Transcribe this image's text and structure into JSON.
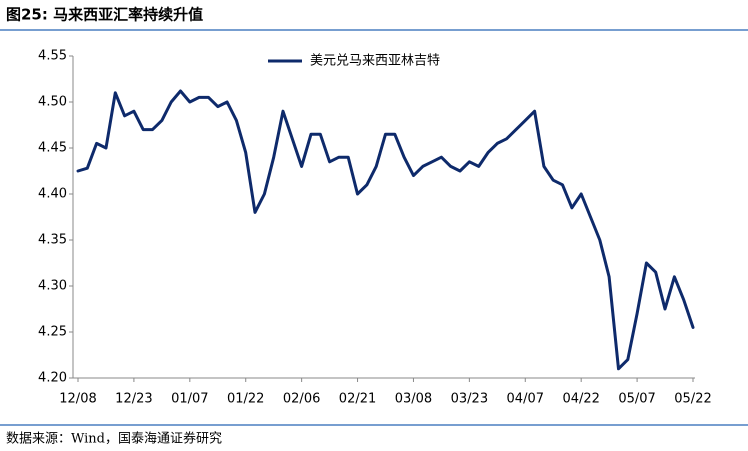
{
  "chart_data": {
    "type": "line",
    "title": "图25:  马来西亚汇率持续升值",
    "source": "数据来源：Wind，国泰海通证券研究",
    "categories": [
      "12/08",
      null,
      null,
      null,
      null,
      null,
      "12/23",
      null,
      null,
      null,
      null,
      null,
      "01/07",
      null,
      null,
      null,
      null,
      null,
      "01/22",
      null,
      null,
      null,
      null,
      null,
      "02/06",
      null,
      null,
      null,
      null,
      null,
      "02/21",
      null,
      null,
      null,
      null,
      null,
      "03/08",
      null,
      null,
      null,
      null,
      null,
      "03/23",
      null,
      null,
      null,
      null,
      null,
      "04/07",
      null,
      null,
      null,
      null,
      null,
      "04/22",
      null,
      null,
      null,
      null,
      null,
      "05/07",
      null,
      null,
      null,
      null,
      null,
      "05/22"
    ],
    "series": [
      {
        "name": "美元兑马来西亚林吉特",
        "color": "#0e2a6b",
        "values": [
          4.425,
          4.428,
          4.455,
          4.45,
          4.51,
          4.485,
          4.49,
          4.47,
          4.47,
          4.48,
          4.5,
          4.512,
          4.5,
          4.505,
          4.505,
          4.495,
          4.5,
          4.48,
          4.445,
          4.38,
          4.4,
          4.44,
          4.49,
          4.46,
          4.43,
          4.465,
          4.465,
          4.435,
          4.44,
          4.44,
          4.4,
          4.41,
          4.43,
          4.465,
          4.465,
          4.44,
          4.42,
          4.43,
          4.435,
          4.44,
          4.43,
          4.425,
          4.435,
          4.43,
          4.445,
          4.455,
          4.46,
          4.47,
          4.48,
          4.49,
          4.43,
          4.415,
          4.41,
          4.385,
          4.4,
          4.375,
          4.35,
          4.31,
          4.21,
          4.22,
          4.27,
          4.325,
          4.315,
          4.275,
          4.31,
          4.285,
          4.255
        ]
      }
    ],
    "ylim": [
      4.2,
      4.55
    ],
    "yticks": [
      {
        "value": 4.2,
        "label": "4.20"
      },
      4.25,
      {
        "value": 4.3,
        "label": "4.30"
      },
      4.35,
      {
        "value": 4.4,
        "label": "4.40"
      },
      4.45,
      {
        "value": 4.5,
        "label": "4.50"
      },
      4.55
    ],
    "grid": false
  }
}
